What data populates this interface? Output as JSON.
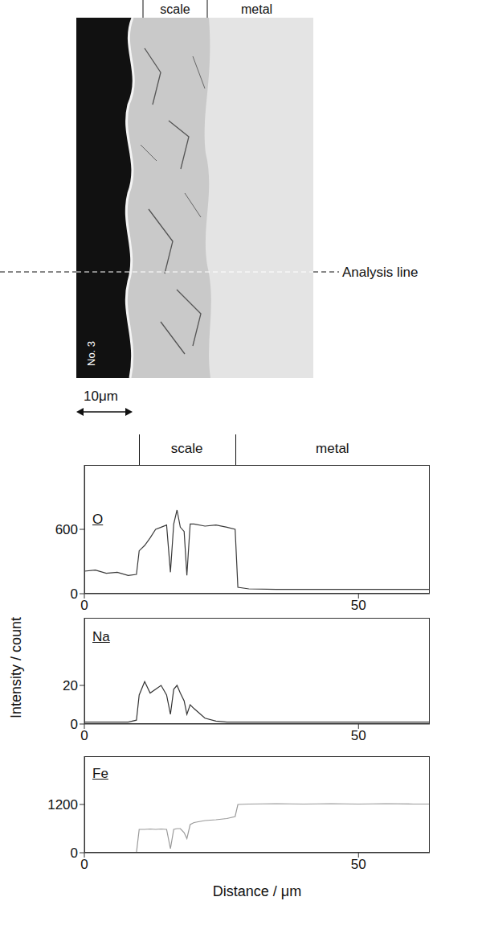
{
  "micrograph": {
    "labels": [
      "scale",
      "metal"
    ],
    "analysis_line": "Analysis line",
    "specimen": "No. 3",
    "scale_bar": "10μm"
  },
  "profile_header": {
    "labels": [
      "scale",
      "metal"
    ],
    "boundaries": [
      9.9,
      27.5
    ]
  },
  "ylabel": "Intensity / count",
  "xlabel": "Distance / μm",
  "chart_data": [
    {
      "type": "line",
      "title": "O",
      "x": [
        0,
        2,
        4,
        6,
        8,
        9.5,
        10,
        11,
        12,
        13,
        14,
        15,
        15.7,
        16.3,
        16.9,
        17.5,
        18.2,
        18.7,
        19.3,
        20,
        22,
        24,
        26,
        27.5,
        28,
        30,
        35,
        40,
        45,
        50,
        55,
        60,
        63
      ],
      "values": [
        210,
        220,
        190,
        200,
        170,
        180,
        400,
        450,
        520,
        600,
        620,
        640,
        200,
        650,
        780,
        620,
        580,
        170,
        650,
        650,
        630,
        640,
        620,
        600,
        60,
        45,
        40,
        40,
        40,
        40,
        40,
        40,
        40
      ],
      "color": "#3a3a3a",
      "xlim": [
        0,
        63
      ],
      "xticks": [
        0,
        50
      ],
      "ylim": [
        0,
        1200
      ],
      "yticks": [
        0,
        600
      ],
      "grid": false
    },
    {
      "type": "line",
      "title": "Na",
      "x": [
        0,
        2,
        4,
        6,
        8,
        9.5,
        10,
        11,
        12,
        13,
        14,
        15,
        15.7,
        16.3,
        16.9,
        17.5,
        18.2,
        18.7,
        19.3,
        20,
        22,
        24,
        26,
        27.5,
        28,
        30,
        35,
        40,
        45,
        50,
        55,
        60,
        63
      ],
      "values": [
        1,
        1,
        1,
        1,
        1,
        2,
        15,
        22,
        16,
        18,
        20,
        15,
        5,
        18,
        20,
        16,
        12,
        5,
        10,
        8,
        3,
        1.5,
        1,
        1,
        1,
        1,
        1,
        1,
        1,
        1,
        1,
        1,
        1
      ],
      "color": "#333333",
      "xlim": [
        0,
        63
      ],
      "xticks": [
        0,
        50
      ],
      "ylim": [
        0,
        55
      ],
      "yticks": [
        0,
        20
      ],
      "grid": false
    },
    {
      "type": "line",
      "title": "Fe",
      "x": [
        0,
        2,
        4,
        6,
        8,
        9.5,
        10,
        11,
        12,
        13,
        14,
        15,
        15.7,
        16.3,
        16.9,
        17.5,
        18.2,
        18.7,
        19.3,
        20,
        22,
        24,
        26,
        27.5,
        28,
        30,
        35,
        40,
        45,
        50,
        55,
        60,
        63
      ],
      "values": [
        0,
        0,
        0,
        0,
        0,
        0,
        580,
        580,
        590,
        580,
        590,
        580,
        100,
        580,
        600,
        600,
        500,
        350,
        700,
        750,
        800,
        820,
        850,
        900,
        1200,
        1210,
        1220,
        1210,
        1220,
        1210,
        1220,
        1210,
        1210
      ],
      "color": "#9a9a9a",
      "xlim": [
        0,
        63
      ],
      "xticks": [
        0,
        50
      ],
      "ylim": [
        0,
        2400
      ],
      "yticks": [
        0,
        1200
      ],
      "grid": false
    }
  ]
}
